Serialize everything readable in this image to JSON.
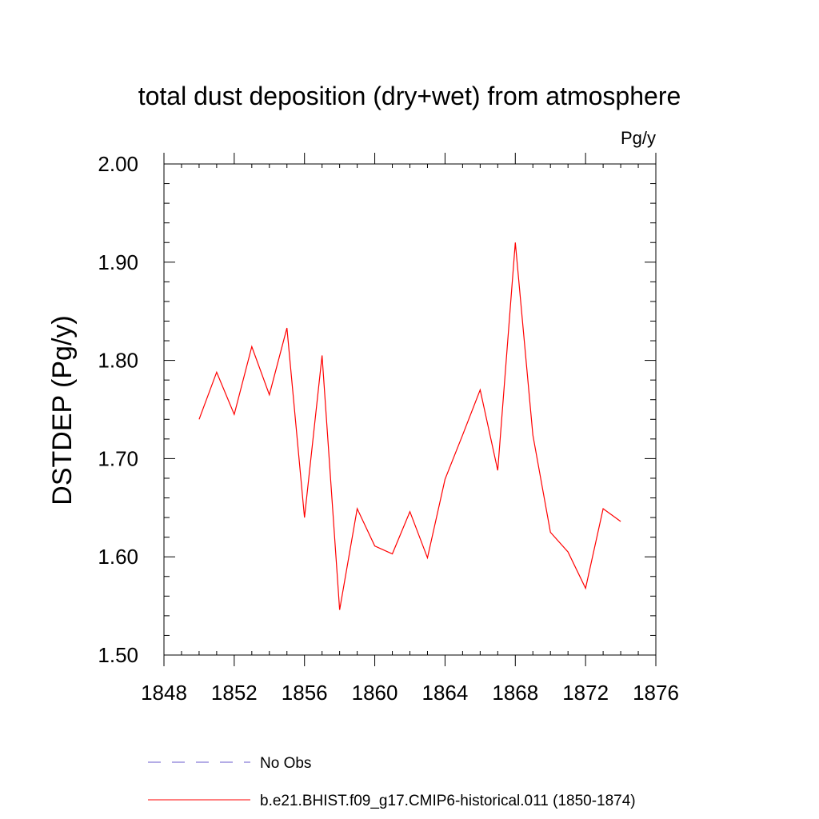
{
  "chart_data": {
    "type": "line",
    "title": "total dust deposition (dry+wet) from atmosphere",
    "units_label": "Pg/y",
    "ylabel": "DSTDEP  (Pg/y)",
    "xlabel": "",
    "xlim": [
      1848,
      1876
    ],
    "ylim": [
      1.5,
      2.0
    ],
    "x_ticks": [
      1848,
      1852,
      1856,
      1860,
      1864,
      1868,
      1872,
      1876
    ],
    "x_tick_labels": [
      "1848",
      "1852",
      "1856",
      "1860",
      "1864",
      "1868",
      "1872",
      "1876"
    ],
    "y_ticks": [
      1.5,
      1.6,
      1.7,
      1.8,
      1.9,
      2.0
    ],
    "y_tick_labels": [
      "1.50",
      "1.60",
      "1.70",
      "1.80",
      "1.90",
      "2.00"
    ],
    "x_minor_step": 1,
    "y_minor_step": 0.02,
    "grid": false,
    "legend_position": "bottom",
    "series": [
      {
        "name": "No Obs",
        "color": "#6a5acd",
        "dash": "dashed",
        "x": [],
        "values": []
      },
      {
        "name": "b.e21.BHIST.f09_g17.CMIP6-historical.011 (1850-1874)",
        "color": "#ff0000",
        "dash": "solid",
        "x": [
          1850,
          1851,
          1852,
          1853,
          1854,
          1855,
          1856,
          1857,
          1858,
          1859,
          1860,
          1861,
          1862,
          1863,
          1864,
          1865,
          1866,
          1867,
          1868,
          1869,
          1870,
          1871,
          1872,
          1873,
          1874
        ],
        "values": [
          1.74,
          1.788,
          1.745,
          1.814,
          1.765,
          1.833,
          1.64,
          1.805,
          1.546,
          1.649,
          1.611,
          1.603,
          1.646,
          1.599,
          1.679,
          1.724,
          1.77,
          1.688,
          1.92,
          1.724,
          1.625,
          1.605,
          1.568,
          1.649,
          1.636
        ]
      }
    ]
  }
}
